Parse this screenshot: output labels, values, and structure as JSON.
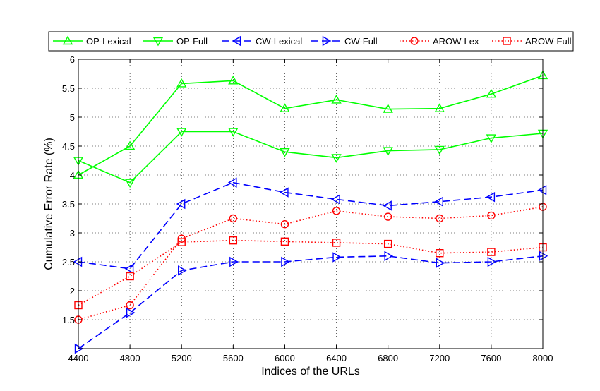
{
  "chart_data": {
    "type": "line",
    "title": "",
    "xlabel": "Indices of the URLs",
    "ylabel": "Cumulative Error Rate (%)",
    "x": [
      4400,
      4800,
      5200,
      5600,
      6000,
      6400,
      6800,
      7200,
      7600,
      8000
    ],
    "xlim": [
      4400,
      8000
    ],
    "ylim": [
      1,
      6
    ],
    "x_ticks": [
      "4400",
      "4800",
      "5200",
      "5600",
      "6000",
      "6400",
      "6800",
      "7200",
      "7600",
      "8000"
    ],
    "y_ticks": [
      "1.5",
      "2",
      "2.5",
      "3",
      "3.5",
      "4",
      "4.5",
      "5",
      "5.5",
      "6"
    ],
    "grid": true,
    "legend_position": "top",
    "series": [
      {
        "name": "OP-Lexical",
        "color": "#00ff00",
        "line": "solid",
        "marker": "triangle-up",
        "values": [
          4.0,
          4.5,
          5.58,
          5.63,
          5.15,
          5.3,
          5.14,
          5.15,
          5.4,
          5.72
        ]
      },
      {
        "name": "OP-Full",
        "color": "#00ff00",
        "line": "solid",
        "marker": "triangle-down",
        "values": [
          4.25,
          3.87,
          4.75,
          4.75,
          4.4,
          4.3,
          4.42,
          4.44,
          4.64,
          4.72
        ]
      },
      {
        "name": "CW-Lexical",
        "color": "#0000ff",
        "line": "dashed",
        "marker": "triangle-left",
        "values": [
          2.5,
          2.38,
          3.5,
          3.87,
          3.7,
          3.58,
          3.47,
          3.54,
          3.62,
          3.74
        ]
      },
      {
        "name": "CW-Full",
        "color": "#0000ff",
        "line": "dashed",
        "marker": "triangle-right",
        "values": [
          1.0,
          1.62,
          2.35,
          2.5,
          2.5,
          2.58,
          2.6,
          2.48,
          2.5,
          2.6
        ]
      },
      {
        "name": "AROW-Lex",
        "color": "#ff0000",
        "line": "dotted",
        "marker": "circle",
        "values": [
          1.5,
          1.75,
          2.9,
          3.25,
          3.15,
          3.38,
          3.28,
          3.25,
          3.3,
          3.45
        ]
      },
      {
        "name": "AROW-Full",
        "color": "#ff0000",
        "line": "dotted",
        "marker": "square",
        "values": [
          1.75,
          2.25,
          2.84,
          2.87,
          2.85,
          2.83,
          2.81,
          2.65,
          2.67,
          2.75
        ]
      }
    ]
  }
}
